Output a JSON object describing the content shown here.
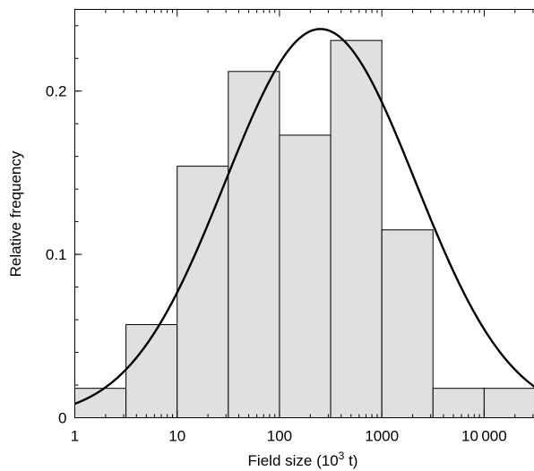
{
  "chart_data": {
    "type": "bar",
    "title": "",
    "xlabel": "Field size (10",
    "xlabel_sup": "3",
    "xlabel_tail": " t)",
    "ylabel": "Relative frequency",
    "x_scale": "log10",
    "xlim": [
      1,
      31623
    ],
    "ylim": [
      0,
      0.25
    ],
    "x_tick_values": [
      1,
      10,
      100,
      1000,
      10000
    ],
    "x_tick_labels": [
      "1",
      "10",
      "100",
      "1000",
      "10 000"
    ],
    "y_tick_values": [
      0,
      0.1,
      0.2
    ],
    "y_tick_labels": [
      "0",
      "0.1",
      "0.2"
    ],
    "bars": [
      {
        "x0": 1,
        "x1": 3.162,
        "value": 0.018
      },
      {
        "x0": 3.162,
        "x1": 10,
        "value": 0.057
      },
      {
        "x0": 10,
        "x1": 31.62,
        "value": 0.154
      },
      {
        "x0": 31.62,
        "x1": 100,
        "value": 0.212
      },
      {
        "x0": 100,
        "x1": 316.2,
        "value": 0.173
      },
      {
        "x0": 316.2,
        "x1": 1000,
        "value": 0.231
      },
      {
        "x0": 1000,
        "x1": 3162,
        "value": 0.115
      },
      {
        "x0": 3162,
        "x1": 10000,
        "value": 0.018
      },
      {
        "x0": 10000,
        "x1": 31623,
        "value": 0.018
      }
    ],
    "fit_curve": {
      "kind": "lognormal",
      "peak_x": 251,
      "peak_y": 0.238,
      "sigma_log10": 0.93
    },
    "grid": false,
    "colors": {
      "bar_fill": "#e0e0e0",
      "stroke": "#000000"
    }
  }
}
